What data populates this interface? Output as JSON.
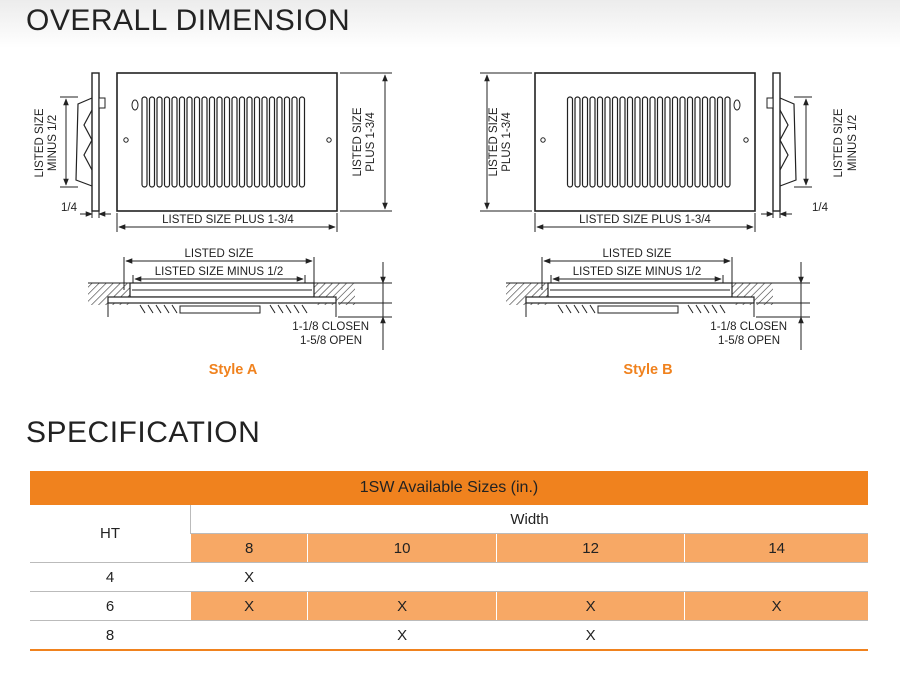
{
  "header": {
    "title": "OVERALL DIMENSION"
  },
  "style_a": {
    "side_label": [
      "LISTED SIZE",
      "MINUS 1/2"
    ],
    "offset": "1/4",
    "width_label": "LISTED SIZE PLUS 1-3/4",
    "height_label": [
      "LISTED SIZE",
      "PLUS 1-3/4"
    ],
    "section": {
      "outer": "LISTED SIZE",
      "inner": "LISTED SIZE MINUS 1/2",
      "closed": "1-1/8 CLOSEN",
      "open": "1-5/8 OPEN"
    },
    "name": "Style A"
  },
  "style_b": {
    "side_label": [
      "LISTED SIZE",
      "MINUS 1/2"
    ],
    "offset": "1/4",
    "width_label": "LISTED SIZE PLUS 1-3/4",
    "height_label": [
      "LISTED SIZE",
      "PLUS 1-3/4"
    ],
    "section": {
      "outer": "LISTED SIZE",
      "inner": "LISTED SIZE MINUS 1/2",
      "closed": "1-1/8 CLOSEN",
      "open": "1-5/8 OPEN"
    },
    "name": "Style B"
  },
  "specification": {
    "title": "SPECIFICATION",
    "table": {
      "caption": "1SW Available Sizes (in.)",
      "row_header": "HT",
      "column_group": "Width",
      "columns": [
        8,
        10,
        12,
        14
      ],
      "rows": [
        {
          "ht": 4,
          "cells": [
            "X",
            null,
            null,
            null
          ]
        },
        {
          "ht": 6,
          "cells": [
            "X",
            "X",
            "X",
            "X"
          ]
        },
        {
          "ht": 8,
          "cells": [
            null,
            "X",
            "X",
            null
          ]
        }
      ]
    }
  }
}
